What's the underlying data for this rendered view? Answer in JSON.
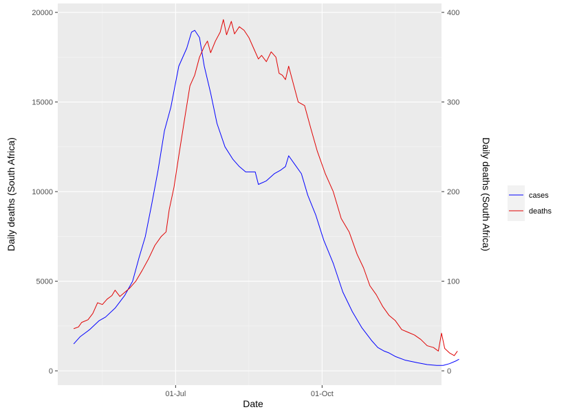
{
  "chart_data": {
    "type": "line",
    "xlabel": "Date",
    "ylabel_left": "Daily deaths (South Africa)",
    "ylabel_right": "Daily deaths (South Africa)",
    "x_ticks": [
      {
        "date": "2020-07-01",
        "label": "01-Jul"
      },
      {
        "date": "2020-10-01",
        "label": "01-Oct"
      }
    ],
    "xlim": [
      "2020-04-18",
      "2020-12-15"
    ],
    "ylim_left": [
      -800,
      20500
    ],
    "ylim_right": [
      -16,
      410
    ],
    "y_ticks_left": [
      0,
      5000,
      10000,
      15000,
      20000
    ],
    "y_ticks_right": [
      0,
      100,
      200,
      300,
      400
    ],
    "y_tick_labels_left": [
      "0",
      "5000",
      "10000",
      "15000",
      "20000"
    ],
    "y_tick_labels_right": [
      "0",
      "100",
      "200",
      "300",
      "400"
    ],
    "grid": true,
    "legend_position": "right",
    "series": [
      {
        "name": "cases",
        "axis": "left",
        "color": "#0000FF",
        "points": [
          [
            "2020-04-28",
            1500
          ],
          [
            "2020-05-02",
            1900
          ],
          [
            "2020-05-08",
            2300
          ],
          [
            "2020-05-14",
            2800
          ],
          [
            "2020-05-18",
            3000
          ],
          [
            "2020-05-24",
            3500
          ],
          [
            "2020-05-30",
            4200
          ],
          [
            "2020-06-04",
            5000
          ],
          [
            "2020-06-08",
            6300
          ],
          [
            "2020-06-12",
            7500
          ],
          [
            "2020-06-16",
            9300
          ],
          [
            "2020-06-20",
            11200
          ],
          [
            "2020-06-24",
            13400
          ],
          [
            "2020-06-28",
            14700
          ],
          [
            "2020-07-03",
            17000
          ],
          [
            "2020-07-08",
            18000
          ],
          [
            "2020-07-11",
            18900
          ],
          [
            "2020-07-13",
            19000
          ],
          [
            "2020-07-16",
            18600
          ],
          [
            "2020-07-19",
            17000
          ],
          [
            "2020-07-23",
            15500
          ],
          [
            "2020-07-27",
            13800
          ],
          [
            "2020-08-01",
            12500
          ],
          [
            "2020-08-06",
            11800
          ],
          [
            "2020-08-10",
            11400
          ],
          [
            "2020-08-14",
            11100
          ],
          [
            "2020-08-20",
            11100
          ],
          [
            "2020-08-22",
            10400
          ],
          [
            "2020-08-27",
            10600
          ],
          [
            "2020-09-01",
            11000
          ],
          [
            "2020-09-05",
            11200
          ],
          [
            "2020-09-08",
            11400
          ],
          [
            "2020-09-10",
            12000
          ],
          [
            "2020-09-14",
            11500
          ],
          [
            "2020-09-18",
            11000
          ],
          [
            "2020-09-22",
            9800
          ],
          [
            "2020-09-27",
            8700
          ],
          [
            "2020-10-02",
            7300
          ],
          [
            "2020-10-08",
            6000
          ],
          [
            "2020-10-14",
            4400
          ],
          [
            "2020-10-20",
            3300
          ],
          [
            "2020-10-26",
            2400
          ],
          [
            "2020-11-01",
            1700
          ],
          [
            "2020-11-05",
            1300
          ],
          [
            "2020-11-09",
            1100
          ],
          [
            "2020-11-12",
            1000
          ],
          [
            "2020-11-16",
            800
          ],
          [
            "2020-11-22",
            600
          ],
          [
            "2020-11-30",
            450
          ],
          [
            "2020-12-06",
            350
          ],
          [
            "2020-12-12",
            300
          ],
          [
            "2020-12-16",
            300
          ],
          [
            "2020-12-20",
            400
          ],
          [
            "2020-12-24",
            550
          ],
          [
            "2020-12-26",
            650
          ]
        ]
      },
      {
        "name": "deaths",
        "axis": "right",
        "color": "#E00000",
        "points": [
          [
            "2020-04-28",
            47
          ],
          [
            "2020-05-01",
            49
          ],
          [
            "2020-05-03",
            54
          ],
          [
            "2020-05-07",
            57
          ],
          [
            "2020-05-10",
            64
          ],
          [
            "2020-05-13",
            76
          ],
          [
            "2020-05-16",
            74
          ],
          [
            "2020-05-19",
            80
          ],
          [
            "2020-05-22",
            84
          ],
          [
            "2020-05-24",
            90
          ],
          [
            "2020-05-27",
            83
          ],
          [
            "2020-05-29",
            86
          ],
          [
            "2020-06-02",
            92
          ],
          [
            "2020-06-06",
            100
          ],
          [
            "2020-06-10",
            112
          ],
          [
            "2020-06-14",
            125
          ],
          [
            "2020-06-18",
            140
          ],
          [
            "2020-06-22",
            150
          ],
          [
            "2020-06-25",
            155
          ],
          [
            "2020-06-27",
            180
          ],
          [
            "2020-06-30",
            205
          ],
          [
            "2020-07-03",
            240
          ],
          [
            "2020-07-07",
            285
          ],
          [
            "2020-07-10",
            318
          ],
          [
            "2020-07-13",
            330
          ],
          [
            "2020-07-16",
            350
          ],
          [
            "2020-07-19",
            362
          ],
          [
            "2020-07-21",
            368
          ],
          [
            "2020-07-23",
            355
          ],
          [
            "2020-07-26",
            368
          ],
          [
            "2020-07-29",
            378
          ],
          [
            "2020-07-31",
            392
          ],
          [
            "2020-08-02",
            375
          ],
          [
            "2020-08-05",
            390
          ],
          [
            "2020-08-07",
            376
          ],
          [
            "2020-08-10",
            384
          ],
          [
            "2020-08-13",
            380
          ],
          [
            "2020-08-16",
            372
          ],
          [
            "2020-08-19",
            360
          ],
          [
            "2020-08-22",
            348
          ],
          [
            "2020-08-24",
            352
          ],
          [
            "2020-08-27",
            345
          ],
          [
            "2020-08-30",
            356
          ],
          [
            "2020-09-02",
            350
          ],
          [
            "2020-09-04",
            332
          ],
          [
            "2020-09-06",
            330
          ],
          [
            "2020-09-08",
            325
          ],
          [
            "2020-09-10",
            340
          ],
          [
            "2020-09-13",
            320
          ],
          [
            "2020-09-16",
            300
          ],
          [
            "2020-09-20",
            296
          ],
          [
            "2020-09-24",
            270
          ],
          [
            "2020-09-28",
            245
          ],
          [
            "2020-10-03",
            220
          ],
          [
            "2020-10-08",
            200
          ],
          [
            "2020-10-13",
            170
          ],
          [
            "2020-10-18",
            155
          ],
          [
            "2020-10-23",
            130
          ],
          [
            "2020-10-27",
            115
          ],
          [
            "2020-10-31",
            95
          ],
          [
            "2020-11-04",
            85
          ],
          [
            "2020-11-08",
            72
          ],
          [
            "2020-11-12",
            62
          ],
          [
            "2020-11-16",
            56
          ],
          [
            "2020-11-20",
            46
          ],
          [
            "2020-11-24",
            43
          ],
          [
            "2020-11-28",
            40
          ],
          [
            "2020-12-02",
            35
          ],
          [
            "2020-12-06",
            28
          ],
          [
            "2020-12-10",
            26
          ],
          [
            "2020-12-13",
            22
          ],
          [
            "2020-12-15",
            42
          ],
          [
            "2020-12-17",
            25
          ],
          [
            "2020-12-20",
            20
          ],
          [
            "2020-12-23",
            17
          ],
          [
            "2020-12-25",
            22
          ]
        ]
      }
    ]
  }
}
